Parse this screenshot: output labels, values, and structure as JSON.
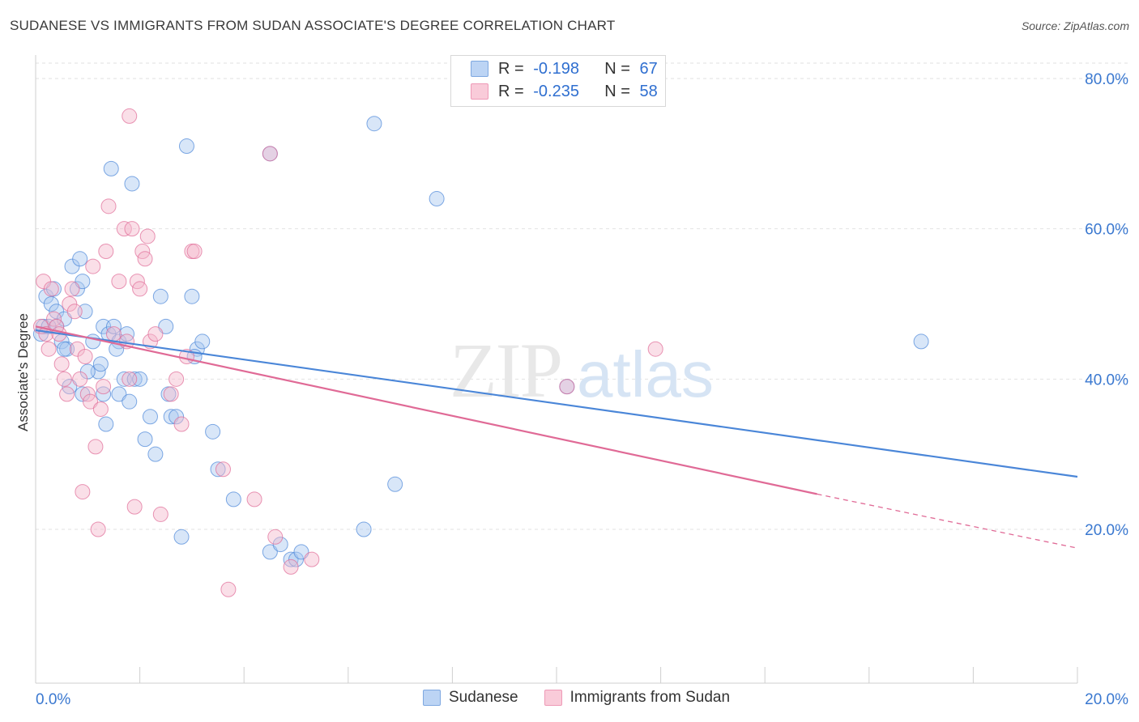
{
  "title": "SUDANESE VS IMMIGRANTS FROM SUDAN ASSOCIATE'S DEGREE CORRELATION CHART",
  "source": "Source: ZipAtlas.com",
  "watermark": {
    "zip": "ZIP",
    "atlas": "atlas"
  },
  "legend": {
    "rows": [
      {
        "r_label": "R =",
        "r_value": "-0.198",
        "n_label": "N =",
        "n_value": "67",
        "color": "#a8c8f0"
      },
      {
        "r_label": "R =",
        "r_value": "-0.235",
        "n_label": "N =",
        "n_value": "58",
        "color": "#f5b8cb"
      }
    ]
  },
  "chart_data": {
    "type": "scatter",
    "title": "SUDANESE VS IMMIGRANTS FROM SUDAN ASSOCIATE'S DEGREE CORRELATION CHART",
    "xlabel": "",
    "ylabel": "Associate's Degree",
    "xlim": [
      0,
      20
    ],
    "ylim": [
      0,
      85
    ],
    "x_tick_labels": [
      "0.0%",
      "20.0%"
    ],
    "y_ticks": [
      20,
      40,
      60,
      80
    ],
    "y_tick_labels": [
      "20.0%",
      "40.0%",
      "60.0%",
      "80.0%"
    ],
    "grid": true,
    "legend_position": "top-center",
    "series": [
      {
        "name": "Sudanese",
        "color": "#4a86d8",
        "fill": "#a8c8f0",
        "trend": {
          "x": [
            0,
            20
          ],
          "y": [
            46.5,
            27.0
          ]
        },
        "points": [
          [
            0.1,
            46
          ],
          [
            0.15,
            47
          ],
          [
            0.2,
            51
          ],
          [
            0.3,
            50
          ],
          [
            0.35,
            52
          ],
          [
            0.4,
            47
          ],
          [
            0.4,
            49
          ],
          [
            0.5,
            45
          ],
          [
            0.55,
            48
          ],
          [
            0.6,
            44
          ],
          [
            0.7,
            55
          ],
          [
            0.8,
            52
          ],
          [
            0.85,
            56
          ],
          [
            0.9,
            53
          ],
          [
            0.95,
            49
          ],
          [
            1.1,
            45
          ],
          [
            1.2,
            41
          ],
          [
            1.25,
            42
          ],
          [
            1.3,
            38
          ],
          [
            1.3,
            47
          ],
          [
            1.4,
            46
          ],
          [
            1.5,
            47
          ],
          [
            1.6,
            45
          ],
          [
            1.6,
            38
          ],
          [
            1.7,
            40
          ],
          [
            1.8,
            37
          ],
          [
            1.9,
            40
          ],
          [
            2.0,
            40
          ],
          [
            2.1,
            32
          ],
          [
            2.2,
            35
          ],
          [
            2.3,
            30
          ],
          [
            2.4,
            51
          ],
          [
            2.5,
            47
          ],
          [
            2.6,
            35
          ],
          [
            2.7,
            35
          ],
          [
            2.8,
            19
          ],
          [
            2.9,
            71
          ],
          [
            3.0,
            51
          ],
          [
            3.1,
            44
          ],
          [
            3.2,
            45
          ],
          [
            3.4,
            33
          ],
          [
            3.5,
            28
          ],
          [
            3.8,
            24
          ],
          [
            4.5,
            70
          ],
          [
            4.5,
            17
          ],
          [
            4.7,
            18
          ],
          [
            4.9,
            16
          ],
          [
            5.0,
            16
          ],
          [
            5.1,
            17
          ],
          [
            6.3,
            20
          ],
          [
            6.5,
            74
          ],
          [
            6.9,
            26
          ],
          [
            7.7,
            64
          ],
          [
            10.2,
            39
          ],
          [
            17.0,
            45
          ],
          [
            1.45,
            68
          ],
          [
            1.85,
            66
          ],
          [
            1.0,
            41
          ],
          [
            0.9,
            38
          ],
          [
            1.35,
            34
          ],
          [
            0.55,
            44
          ],
          [
            0.25,
            47
          ],
          [
            1.75,
            46
          ],
          [
            0.65,
            39
          ],
          [
            2.55,
            38
          ],
          [
            1.55,
            44
          ],
          [
            3.05,
            43
          ]
        ]
      },
      {
        "name": "Immigrants from Sudan",
        "color": "#e06a96",
        "fill": "#f5b8cb",
        "trend": {
          "x": [
            0,
            15
          ],
          "y": [
            47.0,
            24.7
          ]
        },
        "trend_dashed": {
          "x": [
            15,
            20
          ],
          "y": [
            24.7,
            17.5
          ]
        },
        "points": [
          [
            0.1,
            47
          ],
          [
            0.15,
            53
          ],
          [
            0.2,
            46
          ],
          [
            0.25,
            44
          ],
          [
            0.3,
            52
          ],
          [
            0.35,
            48
          ],
          [
            0.4,
            47
          ],
          [
            0.45,
            46
          ],
          [
            0.5,
            42
          ],
          [
            0.55,
            40
          ],
          [
            0.6,
            38
          ],
          [
            0.65,
            50
          ],
          [
            0.7,
            52
          ],
          [
            0.75,
            49
          ],
          [
            0.8,
            44
          ],
          [
            0.85,
            40
          ],
          [
            0.9,
            25
          ],
          [
            0.95,
            43
          ],
          [
            1.0,
            38
          ],
          [
            1.05,
            37
          ],
          [
            1.1,
            55
          ],
          [
            1.15,
            31
          ],
          [
            1.2,
            20
          ],
          [
            1.25,
            36
          ],
          [
            1.3,
            39
          ],
          [
            1.35,
            57
          ],
          [
            1.4,
            63
          ],
          [
            1.5,
            46
          ],
          [
            1.6,
            53
          ],
          [
            1.7,
            60
          ],
          [
            1.75,
            45
          ],
          [
            1.8,
            40
          ],
          [
            1.85,
            60
          ],
          [
            1.9,
            23
          ],
          [
            1.95,
            53
          ],
          [
            2.0,
            52
          ],
          [
            2.05,
            57
          ],
          [
            2.1,
            56
          ],
          [
            2.15,
            59
          ],
          [
            2.2,
            45
          ],
          [
            2.3,
            46
          ],
          [
            2.4,
            22
          ],
          [
            2.6,
            38
          ],
          [
            2.7,
            40
          ],
          [
            2.8,
            34
          ],
          [
            2.9,
            43
          ],
          [
            3.0,
            57
          ],
          [
            3.05,
            57
          ],
          [
            3.6,
            28
          ],
          [
            3.7,
            12
          ],
          [
            4.2,
            24
          ],
          [
            4.5,
            70
          ],
          [
            4.6,
            19
          ],
          [
            4.9,
            15
          ],
          [
            5.3,
            16
          ],
          [
            10.2,
            39
          ],
          [
            11.9,
            44
          ],
          [
            1.8,
            75
          ]
        ]
      }
    ]
  },
  "bottom_legend": [
    {
      "label": "Sudanese",
      "color": "#a8c8f0"
    },
    {
      "label": "Immigrants from Sudan",
      "color": "#f5b8cb"
    }
  ]
}
